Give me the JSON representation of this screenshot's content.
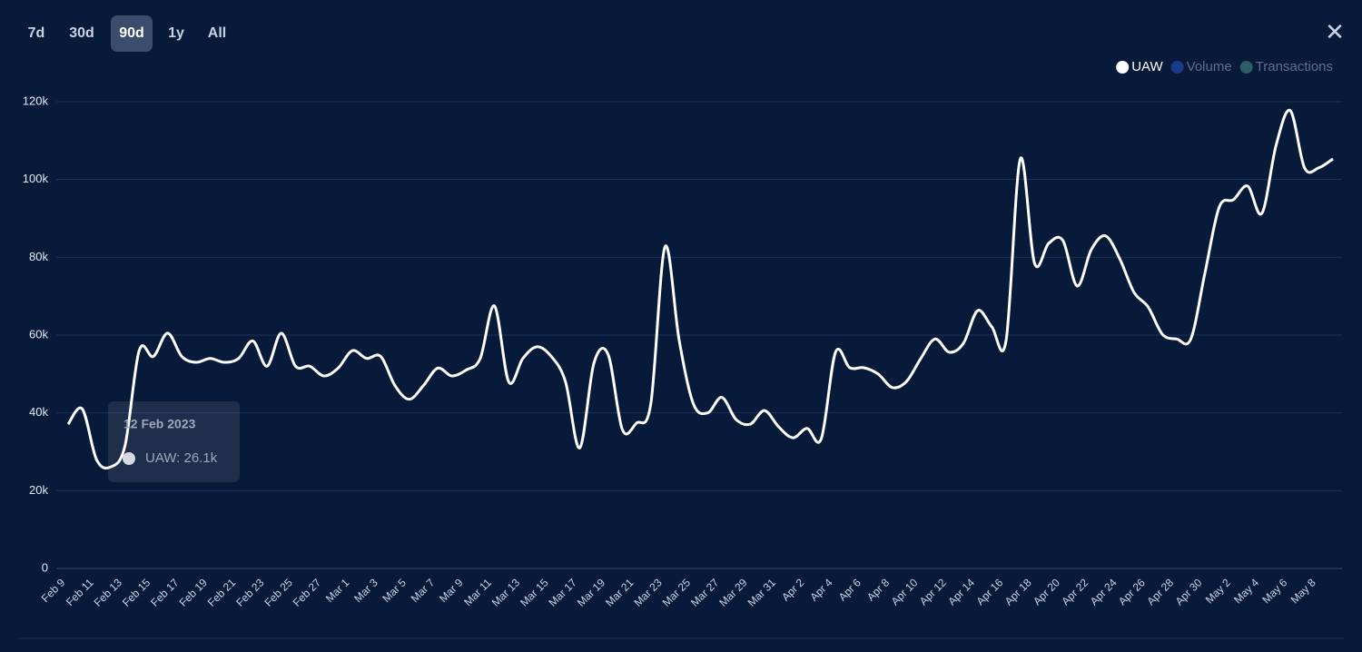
{
  "range_buttons": [
    "7d",
    "30d",
    "90d",
    "1y",
    "All"
  ],
  "selected_range": "90d",
  "close_icon": "✕",
  "tooltip": {
    "title": "12 Feb 2023",
    "text": "UAW: 26.1k"
  },
  "chart_data": {
    "type": "line",
    "categories": [
      "Feb 9",
      null,
      "Feb 11",
      null,
      "Feb 13",
      null,
      "Feb 15",
      null,
      "Feb 17",
      null,
      "Feb 19",
      null,
      "Feb 21",
      null,
      "Feb 23",
      null,
      "Feb 25",
      null,
      "Feb 27",
      null,
      "Mar 1",
      null,
      "Mar 3",
      null,
      "Mar 5",
      null,
      "Mar 7",
      null,
      "Mar 9",
      null,
      "Mar 11",
      null,
      "Mar 13",
      null,
      "Mar 15",
      null,
      "Mar 17",
      null,
      "Mar 19",
      null,
      "Mar 21",
      null,
      "Mar 23",
      null,
      "Mar 25",
      null,
      "Mar 27",
      null,
      "Mar 29",
      null,
      "Mar 31",
      null,
      "Apr 2",
      null,
      "Apr 4",
      null,
      "Apr 6",
      null,
      "Apr 8",
      null,
      "Apr 10",
      null,
      "Apr 12",
      null,
      "Apr 14",
      null,
      "Apr 16",
      null,
      "Apr 18",
      null,
      "Apr 20",
      null,
      "Apr 22",
      null,
      "Apr 24",
      null,
      "Apr 26",
      null,
      "Apr 28",
      null,
      "Apr 30",
      null,
      "May 2",
      null,
      "May 4",
      null,
      "May 6",
      null,
      "May 8",
      null
    ],
    "series": [
      {
        "name": "UAW",
        "color": "#ffffff",
        "values": [
          37100,
          41000,
          28000,
          26100,
          31500,
          56000,
          54500,
          60500,
          54500,
          53000,
          54000,
          53000,
          54000,
          58500,
          52000,
          60500,
          52000,
          52000,
          49500,
          51500,
          56000,
          54000,
          54500,
          47000,
          43500,
          47000,
          51500,
          49500,
          51000,
          54000,
          67500,
          48000,
          54000,
          57000,
          54500,
          48000,
          31000,
          52800,
          55000,
          35700,
          37400,
          42300,
          82700,
          58600,
          42300,
          40000,
          44000,
          38300,
          37100,
          40600,
          36400,
          33600,
          36000,
          33400,
          55600,
          51600,
          51600,
          50000,
          46500,
          48100,
          54000,
          59000,
          55600,
          57900,
          66300,
          62100,
          58600,
          105300,
          78500,
          83600,
          84300,
          72600,
          82000,
          85500,
          79600,
          71000,
          67200,
          60200,
          59000,
          59000,
          76100,
          92900,
          94800,
          98300,
          91300,
          108800,
          117700,
          103000,
          103000,
          105300
        ]
      }
    ],
    "inactive_series": [
      {
        "name": "Volume",
        "color": "#1a3a8c"
      },
      {
        "name": "Transactions",
        "color": "#2c5d68"
      }
    ],
    "ylim": [
      0,
      120000
    ],
    "yticks": [
      0,
      {
        "value": 20000,
        "label": "20k"
      },
      {
        "value": 40000,
        "label": "40k"
      },
      {
        "value": 60000,
        "label": "60k"
      },
      {
        "value": 80000,
        "label": "80k"
      },
      {
        "value": 100000,
        "label": "100k"
      },
      {
        "value": 120000,
        "label": "120k"
      }
    ],
    "grid": true,
    "legend": "top-right"
  }
}
